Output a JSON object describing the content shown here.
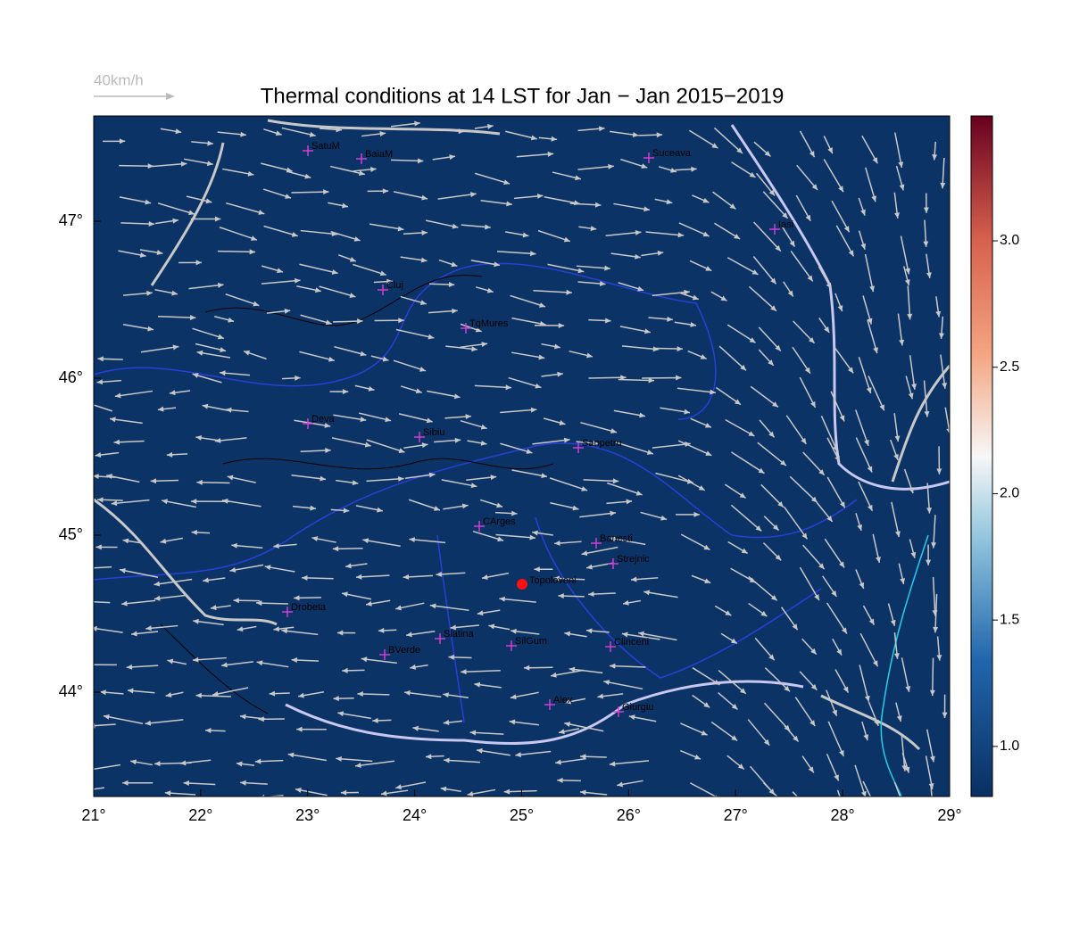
{
  "title": "Thermal conditions at 14 LST for Jan − Jan  2015−2019",
  "wind_legend": "40km/h",
  "x_ticks": [
    {
      "value": 21,
      "label": "21°"
    },
    {
      "value": 22,
      "label": "22°"
    },
    {
      "value": 23,
      "label": "23°"
    },
    {
      "value": 24,
      "label": "24°"
    },
    {
      "value": 25,
      "label": "25°"
    },
    {
      "value": 26,
      "label": "26°"
    },
    {
      "value": 27,
      "label": "27°"
    },
    {
      "value": 28,
      "label": "28°"
    },
    {
      "value": 29,
      "label": "29°"
    }
  ],
  "y_ticks": [
    {
      "value": 44,
      "label": "44°"
    },
    {
      "value": 45,
      "label": "45°"
    },
    {
      "value": 46,
      "label": "46°"
    },
    {
      "value": 47,
      "label": "47°"
    }
  ],
  "colorbar": {
    "range": [
      0.802,
      3.494
    ],
    "ticks": [
      {
        "value": 1.0,
        "label": "1.0"
      },
      {
        "value": 1.5,
        "label": "1.5"
      },
      {
        "value": 2.0,
        "label": "2.0"
      },
      {
        "value": 2.5,
        "label": "2.5"
      },
      {
        "value": 3.0,
        "label": "3.0"
      }
    ]
  },
  "stations": [
    "SatuM",
    "BaiaM",
    "Suceava",
    "Iasi",
    "Cluj",
    "TgMures",
    "Deva",
    "Sibiu",
    "Sanpetru",
    "CArges",
    "Banesti",
    "Strejnic",
    "Drobeta",
    "Slatina",
    "BVerde",
    "SilGum",
    "Clinceni",
    "Alex",
    "Giurgiu"
  ],
  "highlight": "Topoloveni"
}
